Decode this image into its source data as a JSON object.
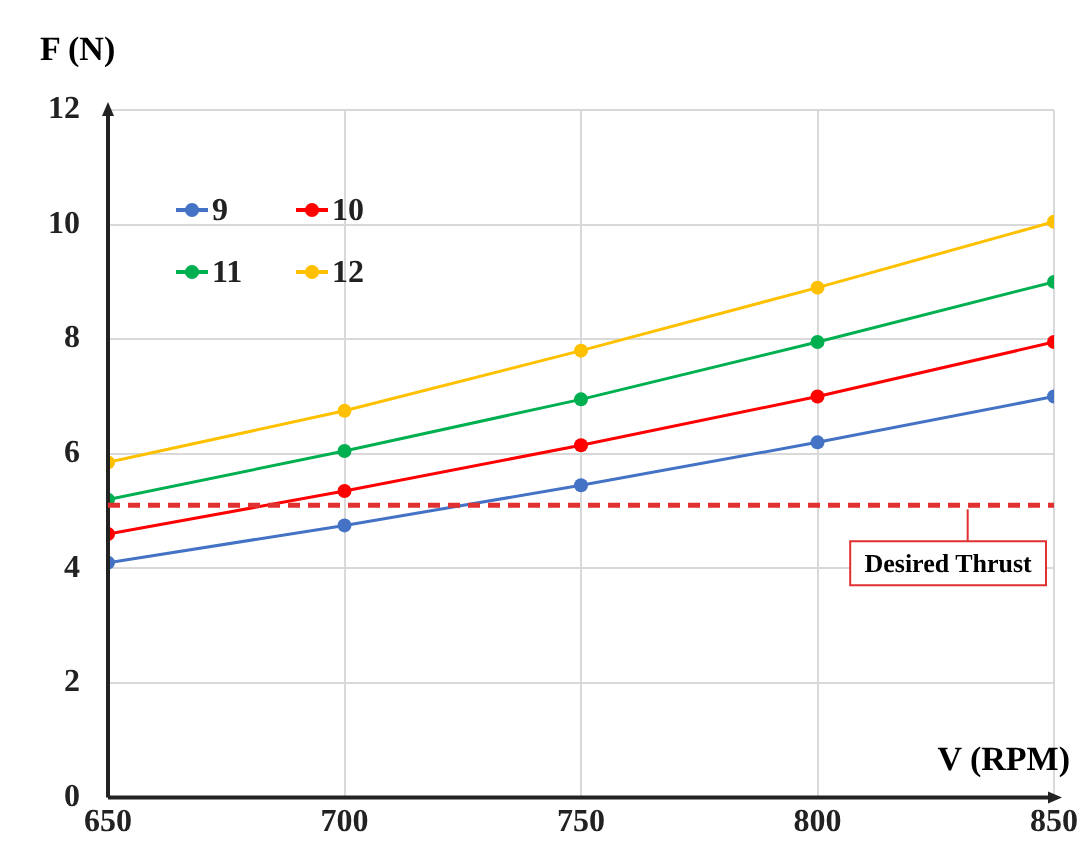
{
  "chart_data": {
    "type": "line",
    "xlabel": "V (RPM)",
    "ylabel": "F (N)",
    "x": [
      650,
      700,
      750,
      800,
      850
    ],
    "series": [
      {
        "name": "9",
        "color": "#4472c4",
        "values": [
          4.1,
          4.75,
          5.45,
          6.2,
          7.0
        ]
      },
      {
        "name": "10",
        "color": "#ff0000",
        "values": [
          4.6,
          5.35,
          6.15,
          7.0,
          7.95
        ]
      },
      {
        "name": "11",
        "color": "#00b050",
        "values": [
          5.2,
          6.05,
          6.95,
          7.95,
          9.0
        ]
      },
      {
        "name": "12",
        "color": "#ffc000",
        "values": [
          5.85,
          6.75,
          7.8,
          8.9,
          10.05
        ]
      }
    ],
    "xlim": [
      650,
      850
    ],
    "xticks": [
      650,
      700,
      750,
      800,
      850
    ],
    "ylim": [
      0,
      12
    ],
    "yticks": [
      0,
      2,
      4,
      6,
      8,
      10,
      12
    ],
    "ref_lines": [
      {
        "axis": "y",
        "value": 5.1,
        "label": "Desired Thrust",
        "color": "#e03030",
        "line_style": "dashed"
      }
    ],
    "grid": true,
    "legend": "top left",
    "marker": "circle",
    "line_style": "solid"
  }
}
